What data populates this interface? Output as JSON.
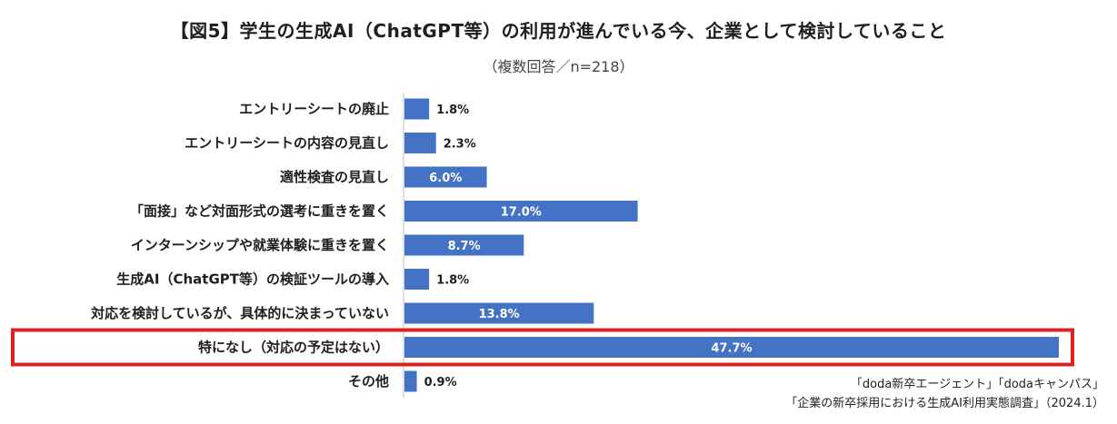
{
  "chart_data": {
    "type": "bar",
    "orientation": "horizontal",
    "title": "【図5】学生の生成AI（ChatGPT等）の利用が進んでいる今、企業として検討していること",
    "subtitle": "（複数回答／n=218）",
    "categories": [
      "エントリーシートの廃止",
      "エントリーシートの内容の見直し",
      "適性検査の見直し",
      "「面接」など対面形式の選考に重きを置く",
      "インターンシップや就業体験に重きを置く",
      "生成AI（ChatGPT等）の検証ツールの導入",
      "対応を検討しているが、具体的に決まっていない",
      "特になし（対応の予定はない）",
      "その他"
    ],
    "values": [
      1.8,
      2.3,
      6.0,
      17.0,
      8.7,
      1.8,
      13.8,
      47.7,
      0.9
    ],
    "data_labels": [
      "1.8%",
      "2.3%",
      "6.0%",
      "17.0%",
      "8.7%",
      "1.8%",
      "13.8%",
      "47.7%",
      "0.9%"
    ],
    "highlight_category": "特になし（対応の予定はない）",
    "xlim": [
      0,
      47.7
    ],
    "grid": false,
    "legend": "none",
    "bar_color": "#4472c4",
    "highlight_color": "#e02020",
    "source": [
      "「doda新卒エージェント」「dodaキャンパス」",
      "「企業の新卒採用における生成AI利用実態調査」（2024.1）"
    ]
  }
}
